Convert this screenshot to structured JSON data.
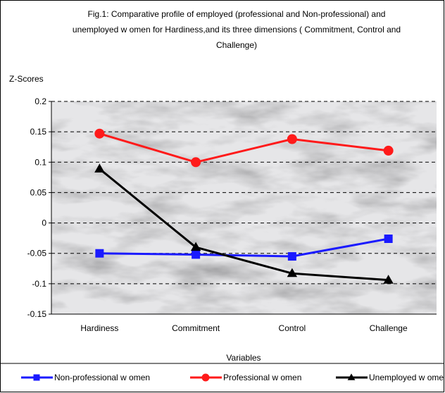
{
  "chart_data": {
    "type": "line",
    "title": "Fig.1:  Comparative profile of employed (professional and Non-professional) and unemployed w omen for  Hardiness,and its three dimensions ( Commitment, Control and Challenge)",
    "title_lines": [
      "Fig.1:  Comparative profile of employed (professional and Non-professional) and",
      "unemployed w omen for  Hardiness,and its three dimensions ( Commitment, Control and",
      "Challenge)"
    ],
    "ylabel": "Z-Scores",
    "xlabel": "Variables",
    "categories": [
      "Hardiness",
      "Commitment",
      "Control",
      "Challenge"
    ],
    "ylim": [
      -0.15,
      0.2
    ],
    "yticks": [
      "0.2",
      "0.15",
      "0.1",
      "0.05",
      "0",
      "-0.05",
      "-0.1",
      "-0.15"
    ],
    "grid": true,
    "legend_position": "bottom",
    "series": [
      {
        "name": "Non-professional w omen",
        "values": [
          -0.05,
          -0.052,
          -0.055,
          -0.026
        ],
        "color": "#1a1aff",
        "marker": "square"
      },
      {
        "name": "Professional w omen",
        "values": [
          0.147,
          0.1,
          0.138,
          0.119
        ],
        "color": "#ff1a1a",
        "marker": "circle"
      },
      {
        "name": "Unemployed w omen",
        "values": [
          0.089,
          -0.04,
          -0.083,
          -0.094
        ],
        "color": "#000000",
        "marker": "triangle"
      }
    ]
  }
}
